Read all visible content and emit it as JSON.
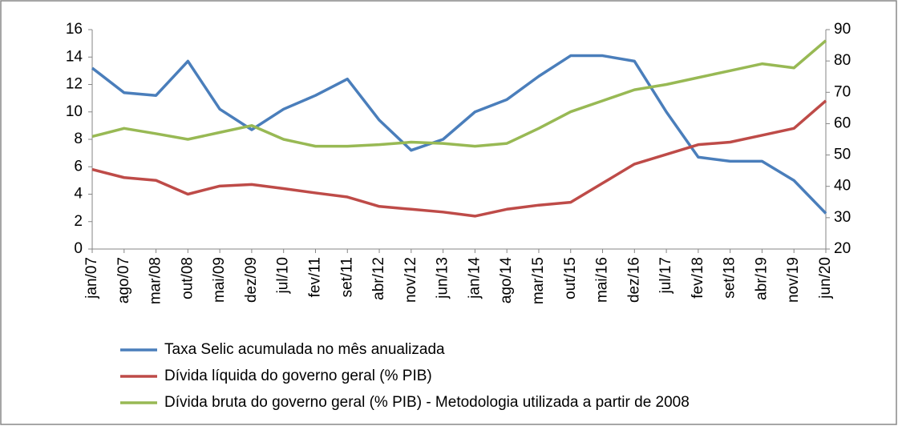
{
  "chart_data": {
    "type": "line",
    "categories": [
      "jan/07",
      "ago/07",
      "mar/08",
      "out/08",
      "mai/09",
      "dez/09",
      "jul/10",
      "fev/11",
      "set/11",
      "abr/12",
      "nov/12",
      "jun/13",
      "jan/14",
      "ago/14",
      "mar/15",
      "out/15",
      "mai/16",
      "dez/16",
      "jul/17",
      "fev/18",
      "set/18",
      "abr/19",
      "nov/19",
      "jun/20"
    ],
    "series": [
      {
        "name": "Taxa Selic acumulada no mês anualizada",
        "color": "#4a7ebb",
        "axis": "y",
        "values": [
          13.2,
          11.4,
          11.2,
          13.7,
          10.2,
          8.7,
          10.2,
          11.2,
          12.4,
          9.4,
          7.2,
          8.0,
          10.0,
          10.9,
          12.6,
          14.1,
          14.1,
          13.7,
          10.0,
          6.7,
          6.4,
          6.4,
          5.0,
          2.6
        ]
      },
      {
        "name": "Dívida líquida do governo geral (% PIB)",
        "color": "#be4b48",
        "axis": "y2",
        "values": [
          45.4,
          42.8,
          41.9,
          37.5,
          40.1,
          40.6,
          39.3,
          37.9,
          36.6,
          33.6,
          32.7,
          31.8,
          30.5,
          32.7,
          34.0,
          34.9,
          41.0,
          47.1,
          50.2,
          53.3,
          54.1,
          56.3,
          58.5,
          67.3
        ]
      },
      {
        "name": "Dívida bruta do governo geral (% PIB) - Metodologia utilizada a partir de 2008",
        "color": "#98b954",
        "axis": "y2",
        "values": [
          55.9,
          58.5,
          56.8,
          55.0,
          57.2,
          59.4,
          55.0,
          52.8,
          52.8,
          53.3,
          54.1,
          53.7,
          52.8,
          53.7,
          58.5,
          63.8,
          67.3,
          70.8,
          72.5,
          74.7,
          76.9,
          79.1,
          77.8,
          86.5
        ]
      }
    ],
    "ylim": [
      0,
      16
    ],
    "yticks": [
      0,
      2,
      4,
      6,
      8,
      10,
      12,
      14,
      16
    ],
    "y2lim": [
      20,
      90
    ],
    "y2ticks": [
      20,
      30,
      40,
      50,
      60,
      70,
      80,
      90
    ]
  }
}
